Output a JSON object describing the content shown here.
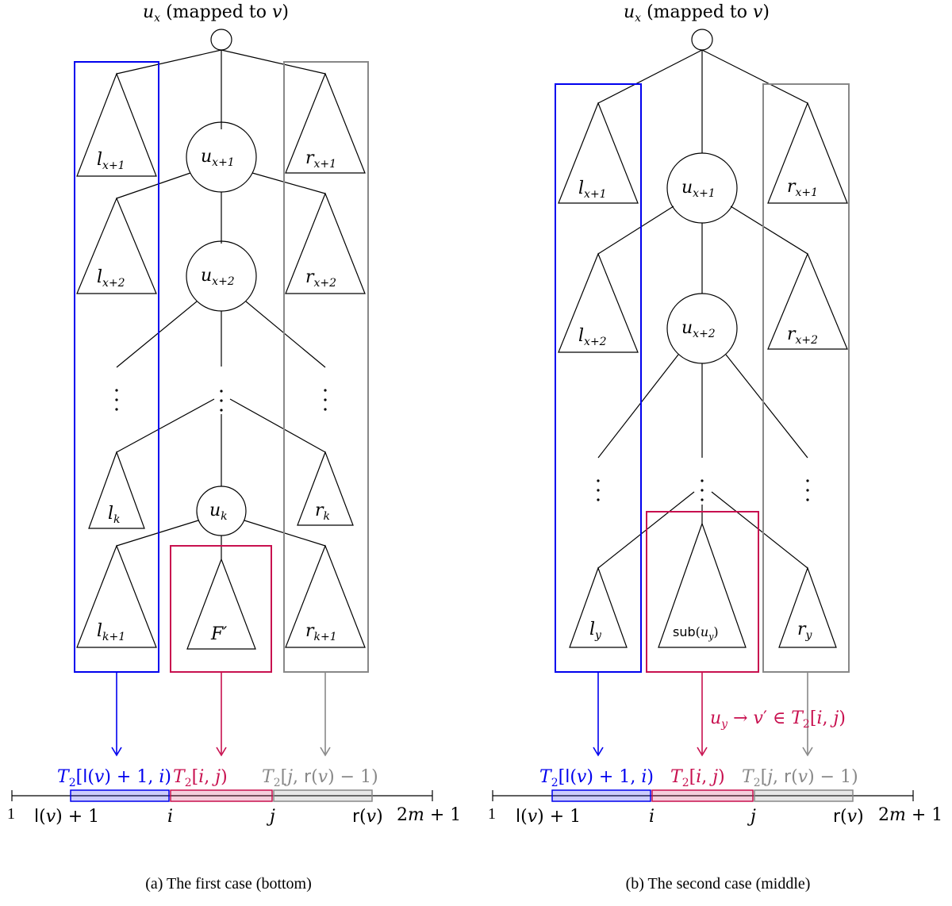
{
  "colors": {
    "blue": "#0000ee",
    "magenta": "#c8104f",
    "gray": "#888888",
    "black": "#000000"
  },
  "panel_a": {
    "root_label": "u_x (mapped to v)",
    "left_trees": [
      "l_{x+1}",
      "l_{x+2}",
      "l_k",
      "l_{k+1}"
    ],
    "spine_nodes": [
      "u_{x+1}",
      "u_{x+2}",
      "u_k"
    ],
    "right_trees": [
      "r_{x+1}",
      "r_{x+2}",
      "r_k",
      "r_{k+1}"
    ],
    "middle_tree": "F′",
    "dots": "⋮",
    "intervals": [
      {
        "text": "T2[l(v) + 1, i)",
        "color": "blue"
      },
      {
        "text": "T2[i, j)",
        "color": "magenta"
      },
      {
        "text": "T2[j, r(v) − 1)",
        "color": "gray"
      }
    ],
    "axis_labels": [
      "1",
      "l(v) + 1",
      "i",
      "j",
      "r(v)",
      "2m + 1"
    ],
    "caption": "(a) The first case (bottom)"
  },
  "panel_b": {
    "root_label": "u_x (mapped to v)",
    "left_trees": [
      "l_{x+1}",
      "l_{x+2}",
      "l_y"
    ],
    "spine_nodes": [
      "u_{x+1}",
      "u_{x+2}"
    ],
    "right_trees": [
      "r_{x+1}",
      "r_{x+2}",
      "r_y"
    ],
    "middle_tree": "sub(u_y)",
    "dots": "⋮",
    "mapping_note": "u_y → v′ ∈ T2[i, j)",
    "intervals": [
      {
        "text": "T2[l(v) + 1, i)",
        "color": "blue"
      },
      {
        "text": "T2[i, j)",
        "color": "magenta"
      },
      {
        "text": "T2[j, r(v) − 1)",
        "color": "gray"
      }
    ],
    "axis_labels": [
      "1",
      "l(v) + 1",
      "i",
      "j",
      "r(v)",
      "2m + 1"
    ],
    "caption": "(b) The second case (middle)"
  }
}
